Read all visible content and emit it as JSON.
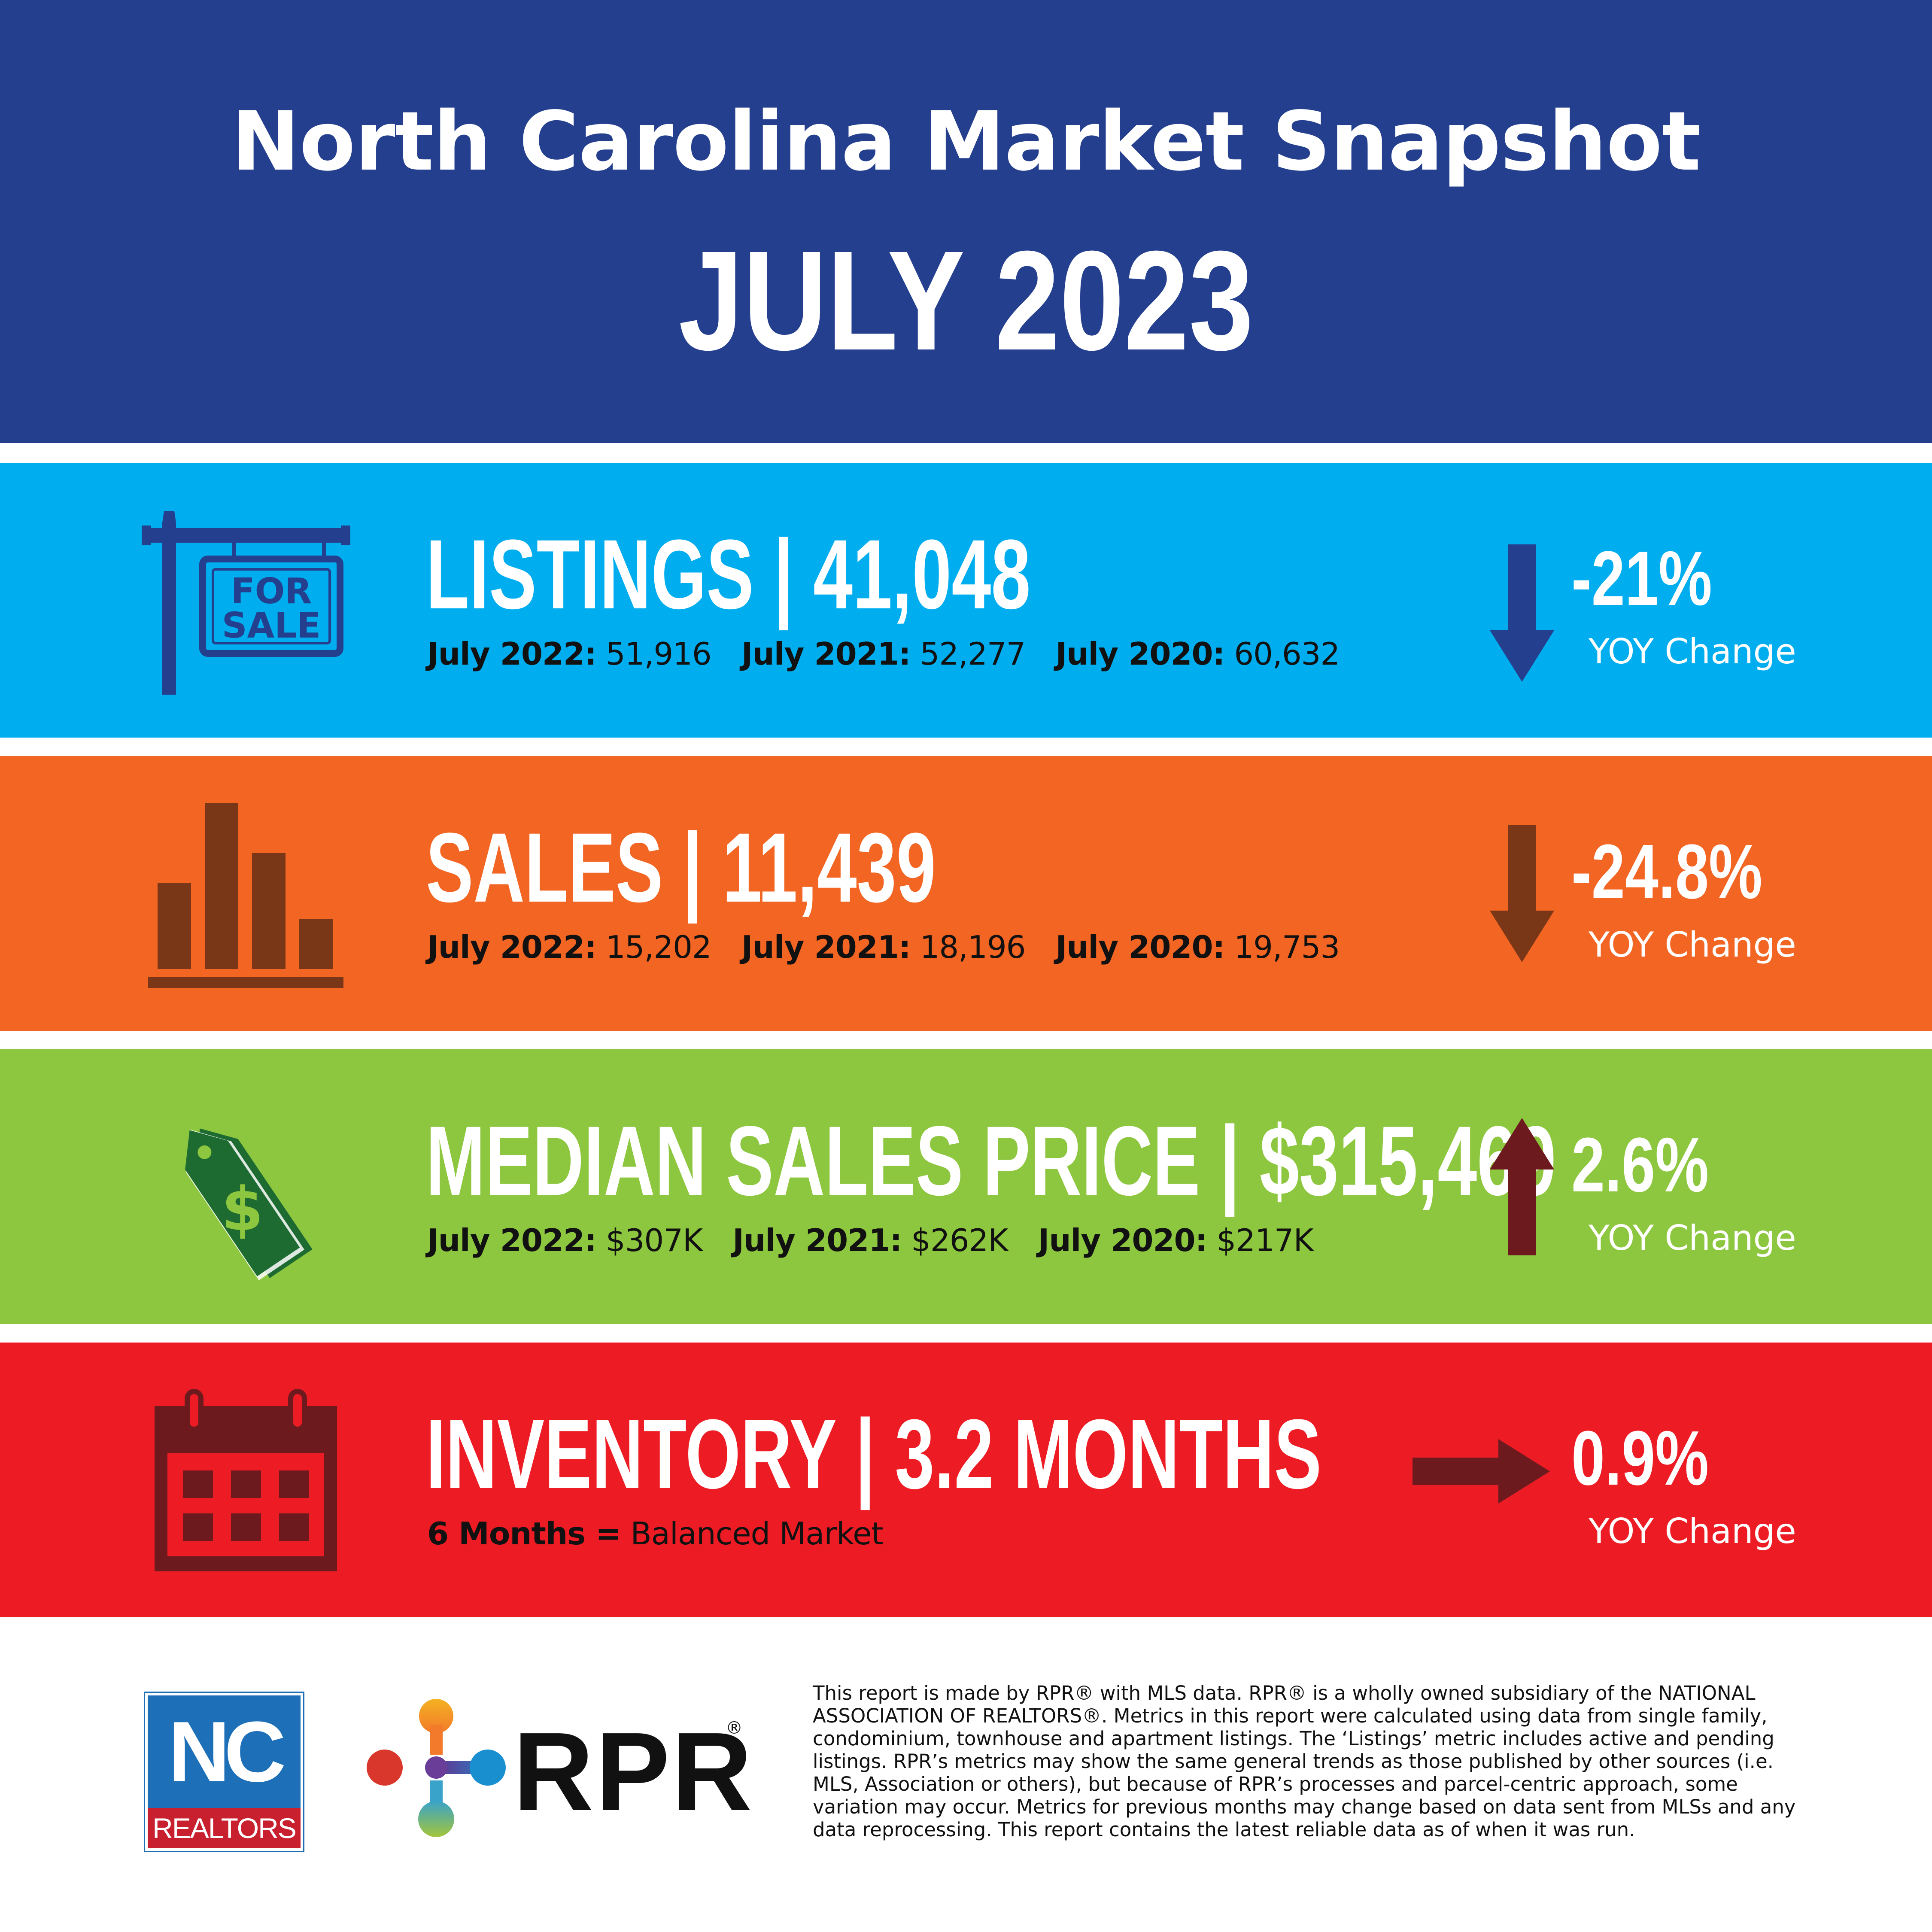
{
  "header": {
    "title": "North Carolina Market Snapshot",
    "subtitle": "JULY 2023",
    "background": "#253f8f"
  },
  "listings": {
    "headline": "LISTINGS | 41,048",
    "sign_line1": "FOR",
    "sign_line2": "SALE",
    "history": [
      {
        "label": "July 2022:",
        "value": "51,916"
      },
      {
        "label": "July 2021:",
        "value": "52,277"
      },
      {
        "label": "July 2020:",
        "value": "60,632"
      }
    ],
    "change": "-21%",
    "change_label": "YOY Change",
    "direction": "down",
    "icon": "for-sale-sign-icon",
    "color": "#00adee"
  },
  "sales": {
    "headline": "SALES | 11,439",
    "history": [
      {
        "label": "July 2022:",
        "value": "15,202"
      },
      {
        "label": "July 2021:",
        "value": "18,196"
      },
      {
        "label": "July 2020:",
        "value": "19,753"
      }
    ],
    "change": "-24.8%",
    "change_label": "YOY Change",
    "direction": "down",
    "icon": "bar-chart-icon",
    "color": "#f26523"
  },
  "median_price": {
    "headline": "MEDIAN SALES PRICE | $315,469",
    "history": [
      {
        "label": "July 2022:",
        "value": "$307K"
      },
      {
        "label": "July 2021:",
        "value": "$262K"
      },
      {
        "label": "July 2020:",
        "value": "$217K"
      }
    ],
    "change": "2.6%",
    "change_label": "YOY Change",
    "direction": "up",
    "icon": "price-tag-icon",
    "color": "#8dc63f"
  },
  "inventory": {
    "headline": "INVENTORY | 3.2 MONTHS",
    "note_bold": "6 Months =",
    "note_rest": "Balanced Market",
    "change": "0.9%",
    "change_label": "YOY Change",
    "direction": "right",
    "icon": "calendar-icon",
    "color": "#ed1c24"
  },
  "footer": {
    "nc_logo_text": "NC",
    "nc_logo_sub": "REALTORS",
    "rpr_text": "RPR",
    "rpr_reg": "®",
    "disclaimer": "This report is made by RPR® with MLS data. RPR® is a wholly owned subsidiary of the NATIONAL ASSOCIATION OF REALTORS®. Metrics in this report were calculated using data from single family, condominium, townhouse and apartment listings. The ‘Listings’ metric includes active and pending listings. RPR’s metrics may show the same general trends as those published by other sources (i.e. MLS, Association or others), but because of RPR’s processes and parcel-centric approach, some variation may occur. Metrics for previous months may change based on data sent from MLSs and any data reprocessing. This report contains the latest reliable data as of when it was run."
  }
}
